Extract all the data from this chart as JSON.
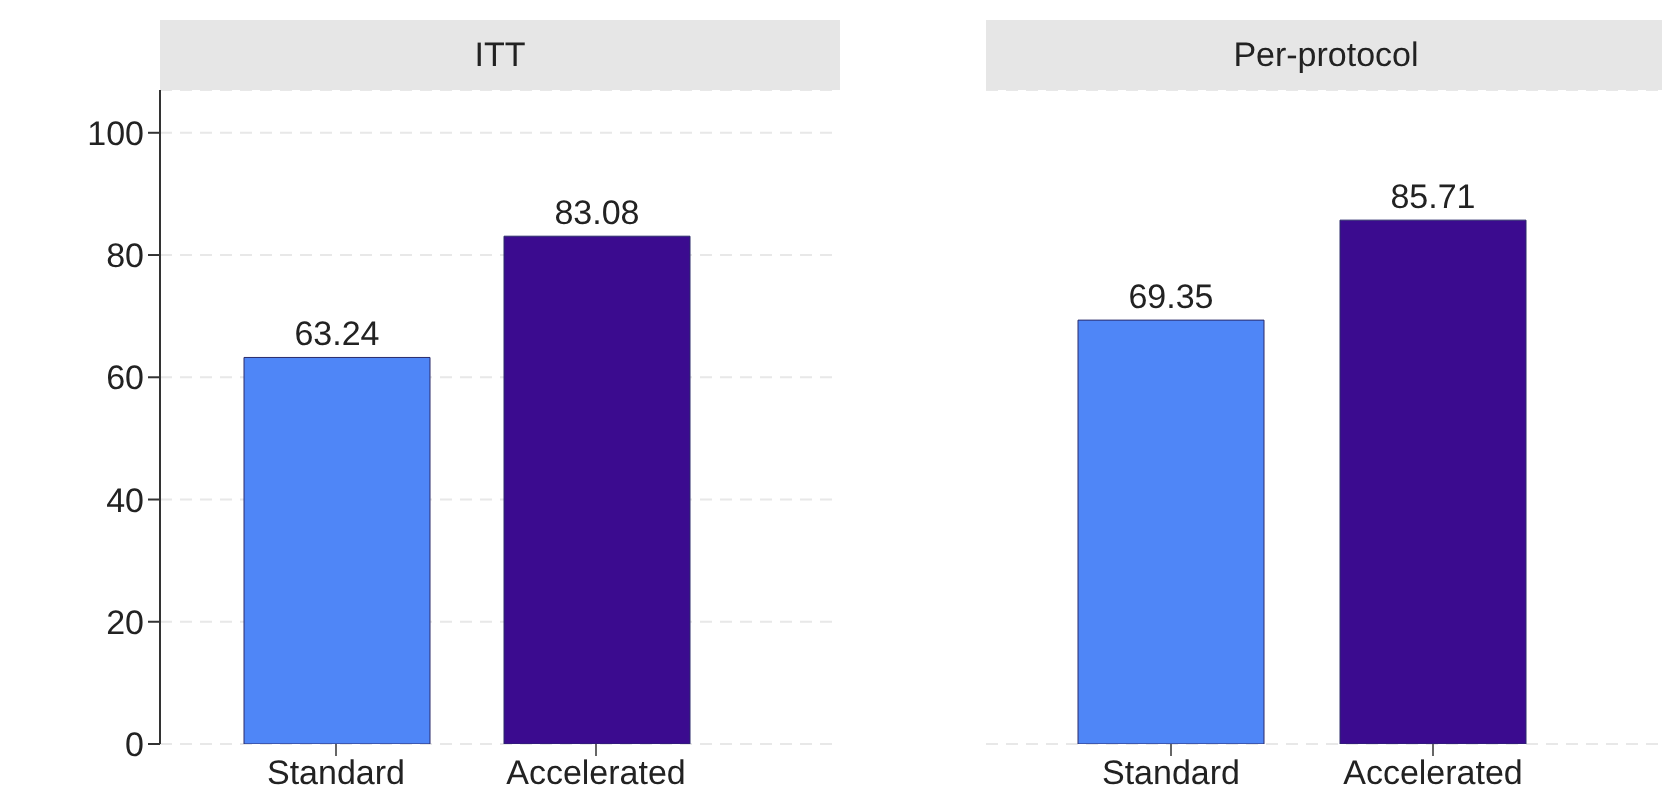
{
  "chart_data": [
    {
      "type": "bar",
      "title": "ITT",
      "categories": [
        "Standard",
        "Accelerated"
      ],
      "values": [
        63.24,
        83.08
      ],
      "colors": [
        "#4f86f7",
        "#3b0b8f"
      ],
      "ylim": [
        0,
        107
      ],
      "yticks": [
        0,
        20,
        40,
        60,
        80,
        100
      ],
      "grid": "y",
      "data_labels": true
    },
    {
      "type": "bar",
      "title": "Per-protocol",
      "categories": [
        "Standard",
        "Accelerated"
      ],
      "values": [
        69.35,
        85.71
      ],
      "colors": [
        "#4f86f7",
        "#3b0b8f"
      ],
      "ylim": [
        0,
        107
      ],
      "yticks": [
        0,
        20,
        40,
        60,
        80,
        100
      ],
      "grid": "y",
      "data_labels": true,
      "tick_labels": "x"
    }
  ]
}
